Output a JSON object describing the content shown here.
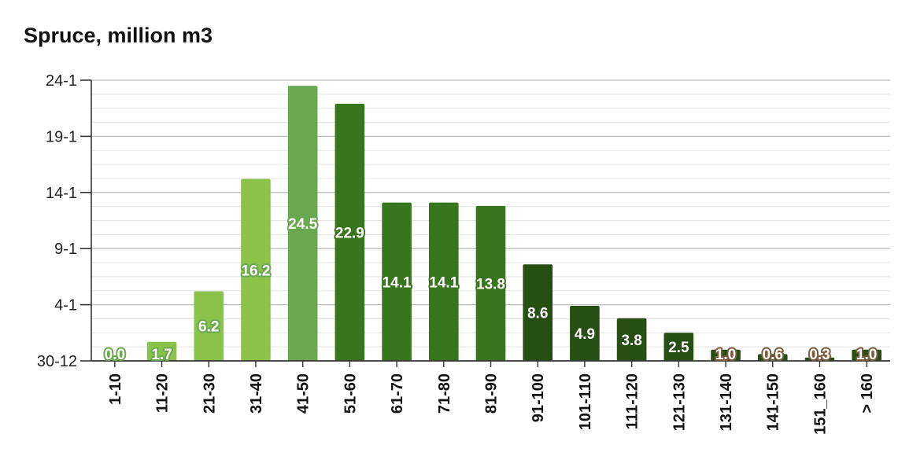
{
  "chart_data": {
    "type": "bar",
    "title": "Spruce, million m3",
    "xlabel": "",
    "ylabel": "",
    "categories": [
      "1-10",
      "11-20",
      "21-30",
      "31-40",
      "41-50",
      "51-60",
      "61-70",
      "71-80",
      "81-90",
      "91-100",
      "101-110",
      "111-120",
      "121-130",
      "131-140",
      "141-150",
      "151_160",
      "> 160"
    ],
    "values": [
      0.0,
      1.7,
      6.2,
      16.2,
      24.5,
      22.9,
      14.1,
      14.1,
      13.8,
      8.6,
      4.9,
      3.8,
      2.5,
      1.0,
      0.6,
      0.3,
      1.0
    ],
    "data_labels": [
      "0.0",
      "1.7",
      "6.2",
      "16.2",
      "24.5",
      "22.9",
      "14.1",
      "14.1",
      "13.8",
      "8.6",
      "4.9",
      "3.8",
      "2.5",
      "1.0",
      "0.6",
      "0.3",
      "1.0"
    ],
    "colors": [
      "#6aa84f",
      "#6aa84f",
      "#6aa84f",
      "#6aa84f",
      "#6aa84f",
      "#38761d",
      "#38761d",
      "#38761d",
      "#38761d",
      "#274e13",
      "#274e13",
      "#274e13",
      "#274e13",
      "#7f6000",
      "#7f6000",
      "#7f6000",
      "#7f6000"
    ],
    "bar_colors": [
      "#8bc34a",
      "#8bc34a",
      "#8bc34a",
      "#8bc34a",
      "#6aa84f",
      "#38761d",
      "#38761d",
      "#38761d",
      "#38761d",
      "#274e13",
      "#274e13",
      "#274e13",
      "#274e13",
      "#274e13",
      "#274e13",
      "#274e13",
      "#274e13"
    ],
    "label_outline_colors": [
      "#6aa84f",
      "#6aa84f",
      "#6aa84f",
      "#6aa84f",
      "#6aa84f",
      "#38761d",
      "#38761d",
      "#38761d",
      "#38761d",
      "#274e13",
      "#274e13",
      "#274e13",
      "#274e13",
      "#7a5c3e",
      "#7a5c3e",
      "#7a5c3e",
      "#7a5c3e"
    ],
    "y_ticks": [
      {
        "label": "30-12",
        "value": 0
      },
      {
        "label": "4-1",
        "value": 5
      },
      {
        "label": "9-1",
        "value": 10
      },
      {
        "label": "14-1",
        "value": 15
      },
      {
        "label": "19-1",
        "value": 20
      },
      {
        "label": "24-1",
        "value": 25
      }
    ],
    "ylim": [
      0,
      25
    ],
    "minor_grid_step": 1.25,
    "grid": true,
    "legend": "none"
  }
}
